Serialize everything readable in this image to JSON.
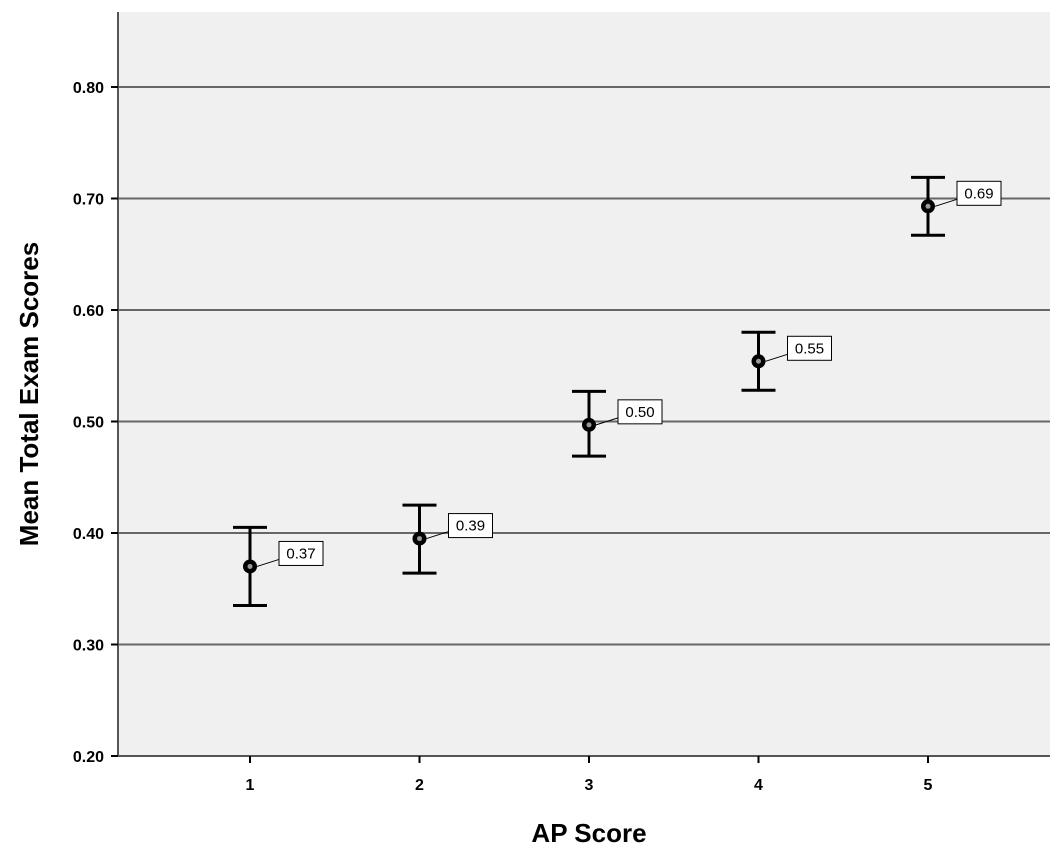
{
  "chart_data": {
    "type": "scatter",
    "title": "",
    "xlabel": "AP Score",
    "ylabel": "Mean Total Exam Scores",
    "categories": [
      "1",
      "2",
      "3",
      "4",
      "5"
    ],
    "ylim": [
      0.2,
      0.85
    ],
    "y_ticks": [
      "0.20",
      "0.30",
      "0.40",
      "0.50",
      "0.60",
      "0.70",
      "0.80"
    ],
    "grid": true,
    "series": [
      {
        "values": [
          0.37,
          0.395,
          0.497,
          0.554,
          0.693
        ],
        "error_low": [
          0.335,
          0.364,
          0.469,
          0.528,
          0.667
        ],
        "error_high": [
          0.405,
          0.425,
          0.527,
          0.58,
          0.719
        ],
        "data_labels": [
          "0.37",
          "0.39",
          "0.50",
          "0.55",
          "0.69"
        ]
      }
    ]
  },
  "colors": {
    "plot_background": "#f0f0f0",
    "gridline": "#666666",
    "marker": "#000000"
  }
}
